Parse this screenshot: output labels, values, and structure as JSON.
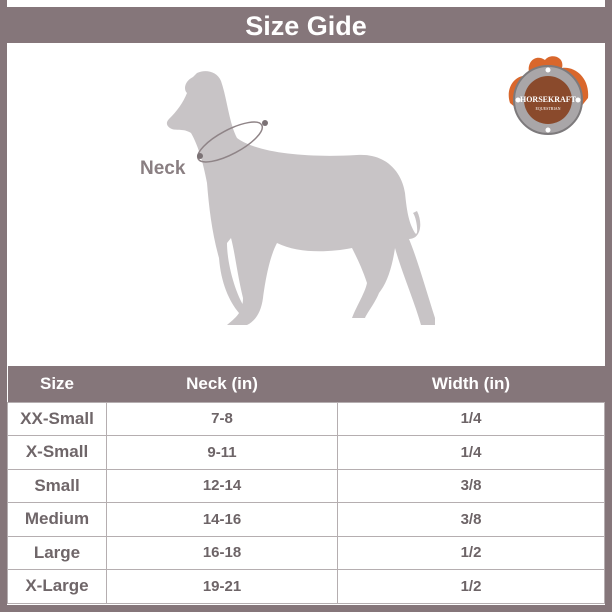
{
  "title": "Size Gide",
  "illustration": {
    "neck_label": "Neck"
  },
  "logo": {
    "brand": "HORSEKRAFT",
    "sub": "EQUESTRIAN"
  },
  "colors": {
    "header": "#85767a",
    "dog": "#c8c4c6",
    "logo_orange": "#d9672c",
    "logo_brown": "#8a4a2c"
  },
  "table": {
    "headers": [
      "Size",
      "Neck (in)",
      "Width (in)"
    ],
    "rows": [
      [
        "XX-Small",
        "7-8",
        "1/4"
      ],
      [
        "X-Small",
        "9-11",
        "1/4"
      ],
      [
        "Small",
        "12-14",
        "3/8"
      ],
      [
        "Medium",
        "14-16",
        "3/8"
      ],
      [
        "Large",
        "16-18",
        "1/2"
      ],
      [
        "X-Large",
        "19-21",
        "1/2"
      ]
    ]
  }
}
